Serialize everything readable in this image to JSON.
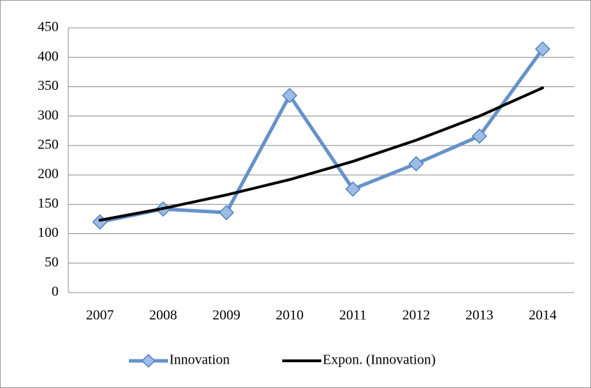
{
  "chart_data": {
    "type": "line",
    "categories": [
      "2007",
      "2008",
      "2009",
      "2010",
      "2011",
      "2012",
      "2013",
      "2014"
    ],
    "series": [
      {
        "name": "Innovation",
        "color": "#6592c9",
        "marker": "diamond",
        "values": [
          120,
          142,
          136,
          335,
          176,
          219,
          266,
          414
        ]
      },
      {
        "name": "Expon. (Innovation)",
        "color": "#000000",
        "values": [
          123,
          143,
          166,
          192,
          223,
          259,
          300,
          348
        ]
      }
    ],
    "ylim": [
      0,
      450
    ],
    "yticks": [
      0,
      50,
      100,
      150,
      200,
      250,
      300,
      350,
      400,
      450
    ],
    "grid": true,
    "legend": "bottom"
  }
}
